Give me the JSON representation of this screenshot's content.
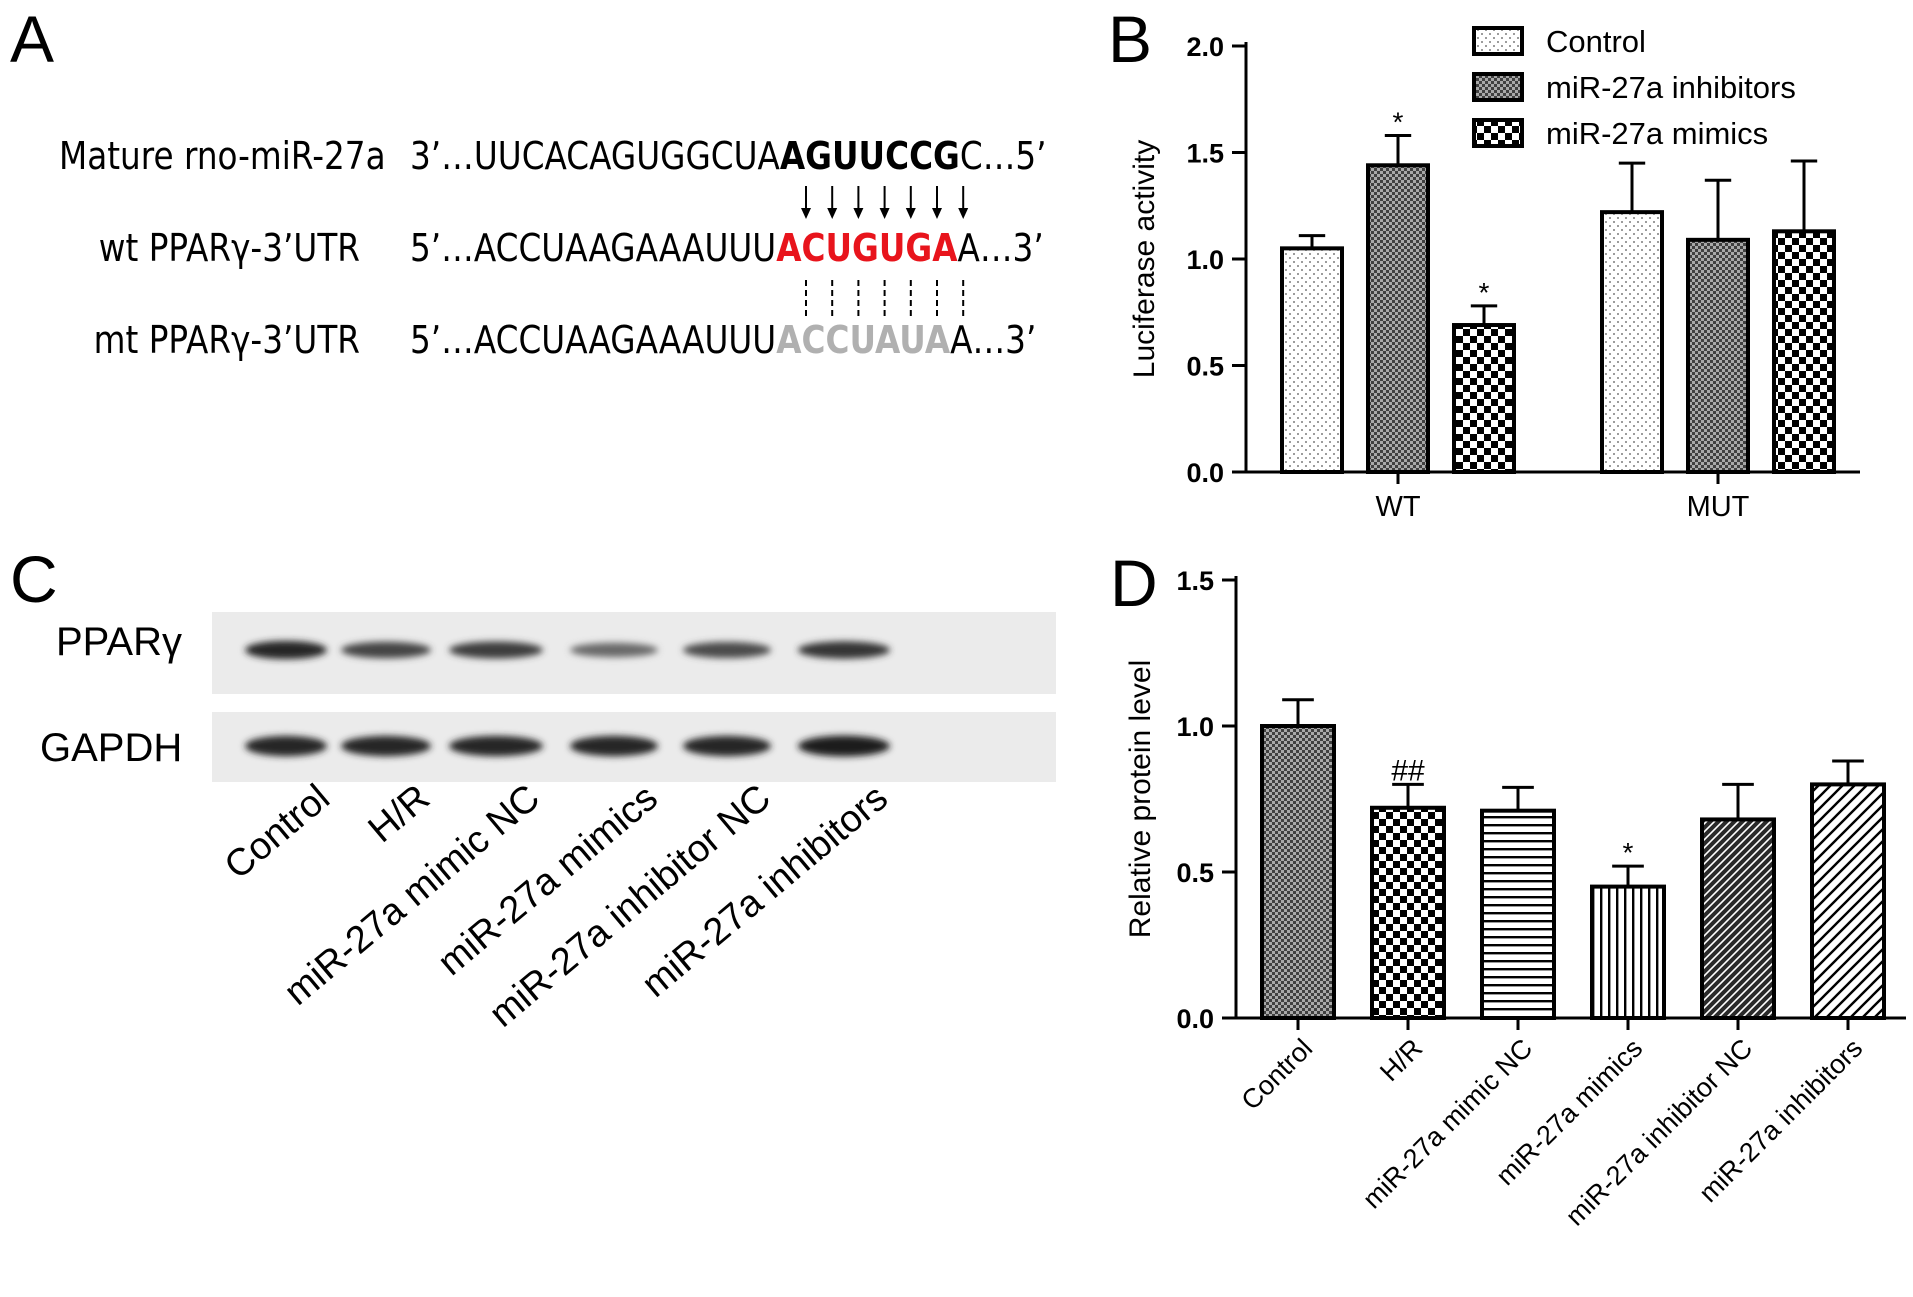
{
  "panels": {
    "a": "A",
    "b": "B",
    "c": "C",
    "d": "D"
  },
  "panel_a": {
    "rows": [
      {
        "label": "Mature rno-miR-27a",
        "prefix": "3’…UUCACAGUGGCUA",
        "core": "AGUUCCG",
        "suffix": "C…5’",
        "style": "bold"
      },
      {
        "label": "wt PPARγ-3’UTR",
        "prefix": "5’…ACCUAAGAAAUUU",
        "core": "ACUGUGA",
        "suffix": "A…3’",
        "style": "red"
      },
      {
        "label": "mt PPARγ-3’UTR",
        "prefix": "5’…ACCUAAGAAAUUU",
        "core": "ACCUAUA",
        "suffix": "A…3’",
        "style": "grey"
      }
    ]
  },
  "panel_c": {
    "bands": [
      "PPARγ",
      "GAPDH"
    ],
    "lanes": [
      "Control",
      "H/R",
      "miR-27a mimic NC",
      "miR-27a mimics",
      "miR-27a inhibitor NC",
      "miR-27a inhibitors"
    ],
    "band_intensity": {
      "PPARγ": [
        0.95,
        0.75,
        0.8,
        0.5,
        0.7,
        0.85
      ],
      "GAPDH": [
        0.95,
        0.95,
        0.95,
        0.95,
        0.95,
        1.0
      ]
    }
  },
  "chart_data": [
    {
      "type": "bar",
      "panel": "B",
      "categories": [
        "WT",
        "MUT"
      ],
      "series": [
        {
          "name": "Control",
          "values": [
            1.05,
            1.22
          ],
          "errors": [
            0.06,
            0.23
          ],
          "pattern": "dots",
          "sig": [
            "",
            ""
          ]
        },
        {
          "name": "miR-27a inhibitors",
          "values": [
            1.44,
            1.09
          ],
          "errors": [
            0.14,
            0.28
          ],
          "pattern": "fine-check",
          "sig": [
            "*",
            ""
          ]
        },
        {
          "name": "miR-27a mimics",
          "values": [
            0.69,
            1.13
          ],
          "errors": [
            0.09,
            0.33
          ],
          "pattern": "checker",
          "sig": [
            "*",
            ""
          ]
        }
      ],
      "xlabel": "",
      "ylabel": "Luciferase activity",
      "ylim": [
        0,
        2.0
      ],
      "yticks": [
        "0.0",
        "0.5",
        "1.0",
        "1.5",
        "2.0"
      ],
      "legend": "top-right",
      "grid": false
    },
    {
      "type": "bar",
      "panel": "D",
      "categories": [
        "Control",
        "H/R",
        "miR-27a mimic NC",
        "miR-27a mimics",
        "miR-27a inhibitor NC",
        "miR-27a inhibitors"
      ],
      "values": [
        1.0,
        0.72,
        0.71,
        0.45,
        0.68,
        0.8
      ],
      "errors": [
        0.09,
        0.08,
        0.08,
        0.07,
        0.12,
        0.08
      ],
      "patterns": [
        "fine-check",
        "checker",
        "hlines",
        "vlines",
        "diag-dense",
        "diag-light"
      ],
      "sig": [
        "",
        "##",
        "",
        "*",
        "",
        ""
      ],
      "xlabel": "",
      "ylabel": "Relative protein level",
      "ylim": [
        0,
        1.5
      ],
      "yticks": [
        "0.0",
        "0.5",
        "1.0",
        "1.5"
      ],
      "grid": false
    }
  ]
}
